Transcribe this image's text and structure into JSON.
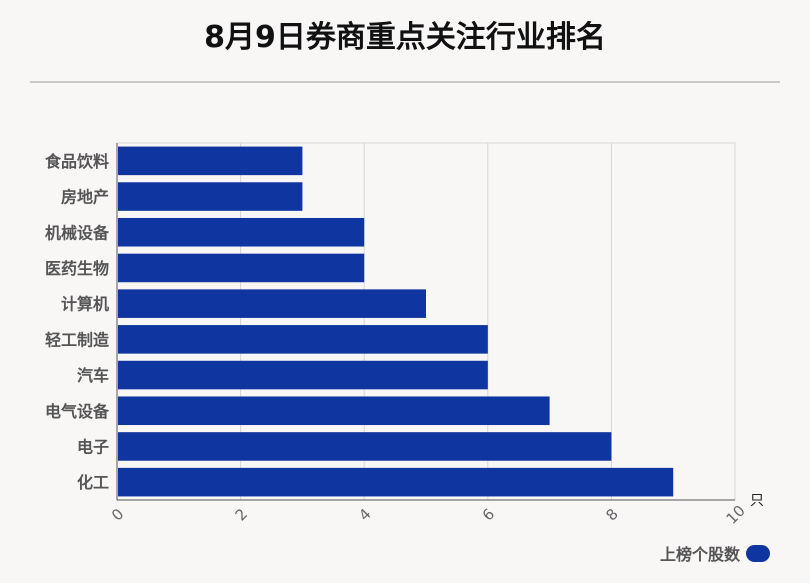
{
  "title": "8月9日券商重点关注行业排名",
  "chart_data": {
    "type": "bar",
    "orientation": "horizontal",
    "categories": [
      "食品饮料",
      "房地产",
      "机械设备",
      "医药生物",
      "计算机",
      "轻工制造",
      "汽车",
      "电气设备",
      "电子",
      "化工"
    ],
    "series": [
      {
        "name": "上榜个股数",
        "values": [
          3,
          3,
          4,
          4,
          5,
          6,
          6,
          7,
          8,
          9
        ]
      }
    ],
    "xlim": [
      0,
      10
    ],
    "xticks": [
      0,
      2,
      4,
      6,
      8,
      10
    ],
    "xunit": "只",
    "grid": true,
    "legend_position": "bottom-right",
    "bar_color": "#0f35a0"
  }
}
